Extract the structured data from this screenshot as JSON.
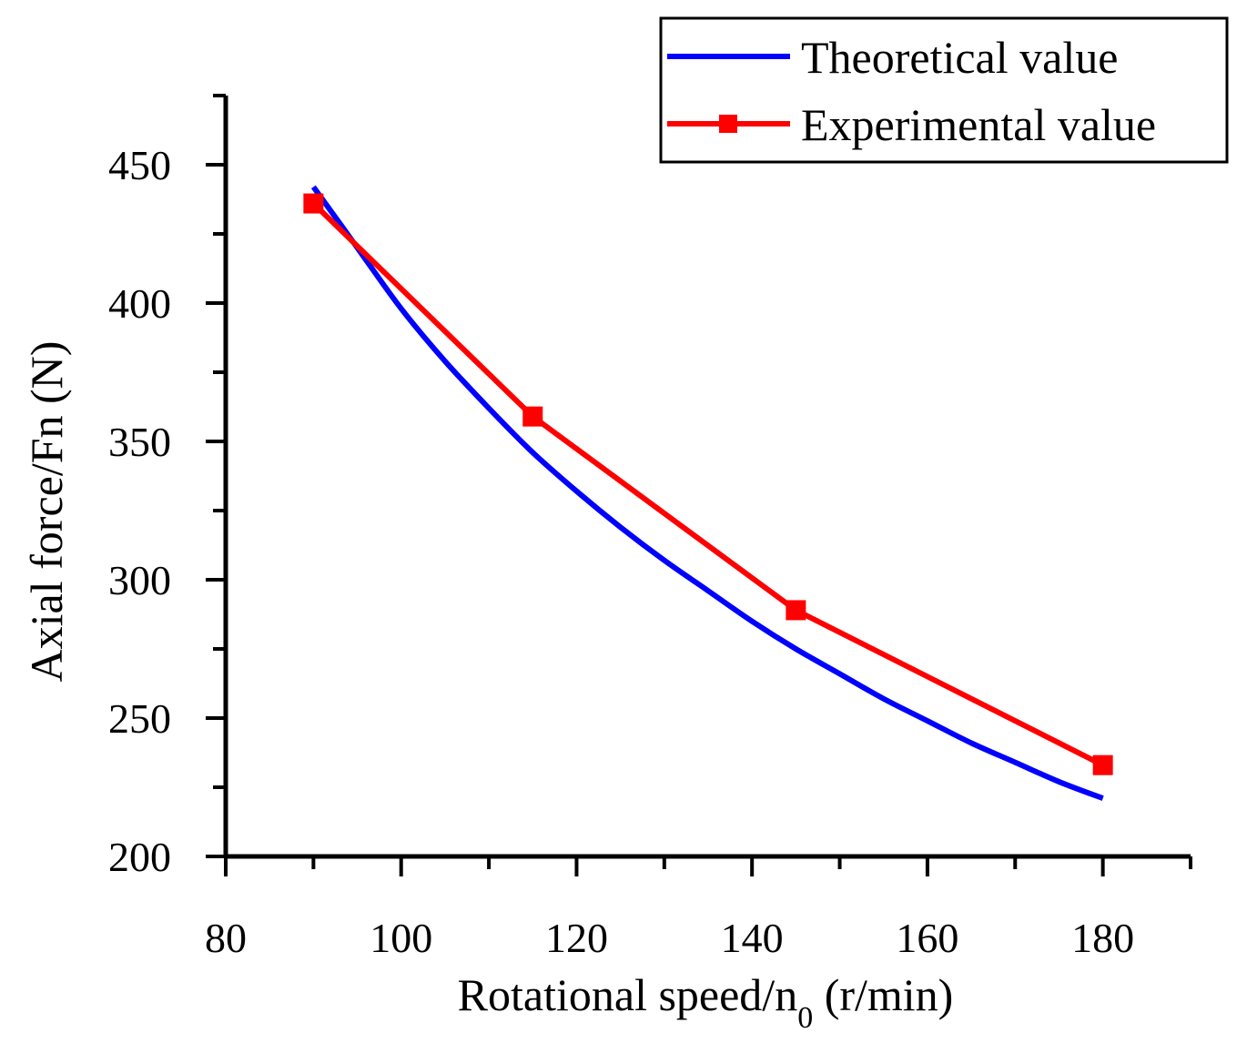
{
  "chart_data": {
    "type": "line",
    "xlabel": {
      "main": "Rotational speed/n",
      "sub": "0",
      "unit": " (r/min)"
    },
    "ylabel": "Axial force/Fn (N)",
    "xlim": [
      80,
      190
    ],
    "ylim": [
      200,
      475
    ],
    "x_ticks": [
      80,
      100,
      120,
      140,
      160,
      180
    ],
    "y_ticks": [
      200,
      250,
      300,
      350,
      400,
      450
    ],
    "x_tick_labels": [
      "80",
      "100",
      "120",
      "140",
      "160",
      "180"
    ],
    "y_tick_labels": [
      "200",
      "250",
      "300",
      "350",
      "400",
      "450"
    ],
    "legend_position": "top-right",
    "series": [
      {
        "name": "Theoretical value",
        "color": "#0000ff",
        "marker": "none",
        "x": [
          90,
          95,
          100,
          105,
          110,
          115,
          120,
          125,
          130,
          135,
          140,
          145,
          150,
          155,
          160,
          165,
          170,
          175,
          180
        ],
        "y": [
          442,
          420,
          398,
          379,
          362,
          346,
          332,
          319,
          307,
          296,
          285,
          275,
          266,
          257,
          249,
          241,
          234,
          227,
          221
        ]
      },
      {
        "name": "Experimental value",
        "color": "#ff0000",
        "marker": "square",
        "x": [
          90,
          115,
          145,
          180
        ],
        "y": [
          436,
          359,
          289,
          233
        ]
      }
    ]
  }
}
